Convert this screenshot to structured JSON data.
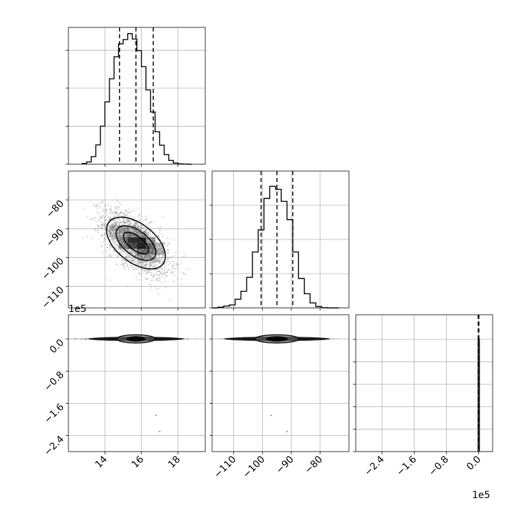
{
  "chart_data": {
    "type": "corner",
    "parameters": [
      {
        "axis_range": [
          12.0,
          19.5
        ],
        "ticks": [
          14,
          16,
          18
        ],
        "tick_labels": [
          "14",
          "16",
          "18"
        ],
        "quantiles": [
          14.8,
          15.7,
          16.65
        ]
      },
      {
        "axis_range": [
          -117.5,
          -70.0
        ],
        "ticks": [
          -80,
          -90,
          -100,
          -110
        ],
        "tick_labels": [
          "−80",
          "−90",
          "−100",
          "−110"
        ],
        "x_ticks": [
          -110,
          -100,
          -90,
          -80
        ],
        "x_tick_labels": [
          "−110",
          "−100",
          "−90",
          "−80"
        ],
        "quantiles": [
          -100.5,
          -95.0,
          -89.5
        ]
      },
      {
        "axis_range": [
          -3.05,
          0.35
        ],
        "axis_range_y": [
          -2.8,
          0.6
        ],
        "exponent_label": "1e5",
        "ticks_y": [
          0.0,
          -0.8,
          -1.6,
          -2.4
        ],
        "tick_labels_y": [
          "0.0",
          "−0.8",
          "−1.6",
          "−2.4"
        ],
        "ticks_x": [
          -2.4,
          -1.6,
          -0.8,
          0.0
        ],
        "tick_labels_x": [
          "−2.4",
          "−1.6",
          "−0.8",
          "0.0"
        ],
        "quantiles": [
          -0.01,
          0.0,
          0.01
        ]
      }
    ],
    "hist_1": {
      "bin_edges": [
        12.75,
        13.0,
        13.25,
        13.5,
        13.75,
        14.0,
        14.25,
        14.5,
        14.75,
        15.0,
        15.25,
        15.5,
        15.75,
        16.0,
        16.25,
        16.5,
        16.75,
        17.0,
        17.25,
        17.5,
        17.75,
        18.0,
        18.25,
        18.5,
        18.75
      ],
      "counts": [
        0.3,
        0.9,
        3.0,
        7.6,
        15.0,
        24.6,
        33.7,
        42.4,
        47.5,
        49.2,
        51.5,
        49.4,
        44.8,
        38.5,
        29.3,
        20.6,
        12.8,
        7.5,
        3.8,
        1.5,
        0.5,
        0.15,
        0.05,
        0.0
      ],
      "y_ticks": [
        0,
        15,
        30,
        45
      ]
    },
    "hist_2": {
      "bin_edges": [
        -117.5,
        -115.5,
        -113.5,
        -111.5,
        -109.5,
        -107.5,
        -105.5,
        -103.5,
        -101.5,
        -99.5,
        -97.5,
        -95.5,
        -93.5,
        -91.5,
        -89.5,
        -87.5,
        -85.5,
        -83.5,
        -81.5,
        -79.5,
        -77.5,
        -75.5,
        -73.5
      ],
      "counts": [
        0.0,
        0.3,
        0.8,
        1.3,
        3.8,
        7.3,
        13.4,
        24.5,
        34.2,
        48.0,
        53.3,
        52.0,
        46.7,
        38.7,
        24.5,
        12.9,
        6.2,
        2.2,
        0.6,
        0.1,
        0.0,
        0.0
      ],
      "y_ticks": [
        0,
        15,
        30,
        45
      ]
    },
    "hist_3": {
      "bin_edges": [
        -0.03,
        0.0,
        0.03
      ],
      "counts": [
        50,
        50
      ],
      "y_ticks": [
        0,
        10,
        20,
        30,
        40,
        50
      ]
    },
    "scatter_12": {
      "center": [
        15.7,
        -95.0
      ],
      "spread": [
        0.9,
        5.5
      ],
      "correlation": -0.62,
      "density_contours": true
    },
    "scatter_13": {
      "center": [
        15.7,
        0.0
      ],
      "outliers": [
        [
          16.8,
          -1.9
        ],
        [
          17.0,
          -2.3
        ]
      ]
    },
    "scatter_23": {
      "center": [
        -95.0,
        0.0
      ],
      "outliers": [
        [
          -97.0,
          -1.9
        ],
        [
          -91.5,
          -2.3
        ]
      ]
    }
  }
}
